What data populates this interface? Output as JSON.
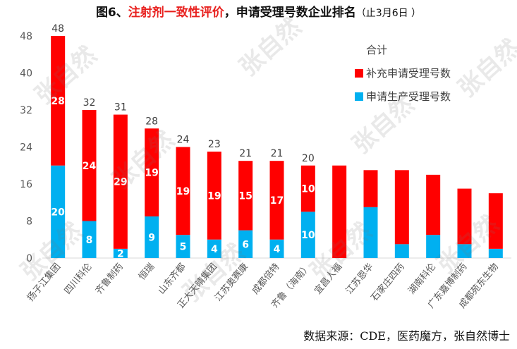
{
  "title": {
    "prefix": "图6、",
    "highlight": "注射剂一致性评价",
    "rest": "，申请受理号数企业排名",
    "date": "（止3月6日 ）"
  },
  "source": "数据来源：CDE，医药魔方，张自然博士",
  "watermark_text": "张自然",
  "colors": {
    "supplement": "#ff0000",
    "production": "#00b0f0",
    "axis_text": "#595959",
    "grid": "#d9d9d9"
  },
  "chart_data": {
    "type": "bar",
    "stacked": true,
    "categories": [
      "扬子江集团",
      "四川科伦",
      "齐鲁制药",
      "恒瑞",
      "山东齐都",
      "正大天晴集团",
      "江苏奥赛康",
      "成都倍特",
      "齐鲁（海南）",
      "宜昌人福",
      "江苏恩华",
      "石家庄四药",
      "湖南科伦",
      "广东嘉博制药",
      "成都苑东生物"
    ],
    "totals": [
      48,
      32,
      31,
      28,
      24,
      23,
      21,
      21,
      20,
      20,
      19,
      19,
      18,
      15,
      14
    ],
    "total_labels": [
      "48",
      "32",
      "31",
      "28",
      "24",
      "23",
      "21",
      "21",
      "20",
      "",
      "",
      "",
      "",
      "",
      ""
    ],
    "series": [
      {
        "name": "申请生产受理号数",
        "values": [
          20,
          8,
          2,
          9,
          5,
          4,
          6,
          4,
          10,
          0,
          11,
          3,
          5,
          3,
          2
        ],
        "labels": [
          "20",
          "8",
          "2",
          "9",
          "5",
          "4",
          "6",
          "4",
          "10",
          "",
          "",
          "",
          "",
          "",
          ""
        ]
      },
      {
        "name": "补充申请受理号数",
        "values": [
          28,
          24,
          29,
          19,
          19,
          19,
          15,
          17,
          10,
          20,
          8,
          16,
          13,
          12,
          12
        ],
        "labels": [
          "28",
          "24",
          "29",
          "19",
          "19",
          "19",
          "15",
          "17",
          "10",
          "",
          "",
          "",
          "",
          "",
          ""
        ]
      }
    ],
    "legend_title": "合计",
    "legend_position": "top-right",
    "yticks": [
      "0",
      "8",
      "16",
      "24",
      "32",
      "40",
      "48"
    ],
    "ylim": [
      0,
      48
    ],
    "grid": false
  }
}
